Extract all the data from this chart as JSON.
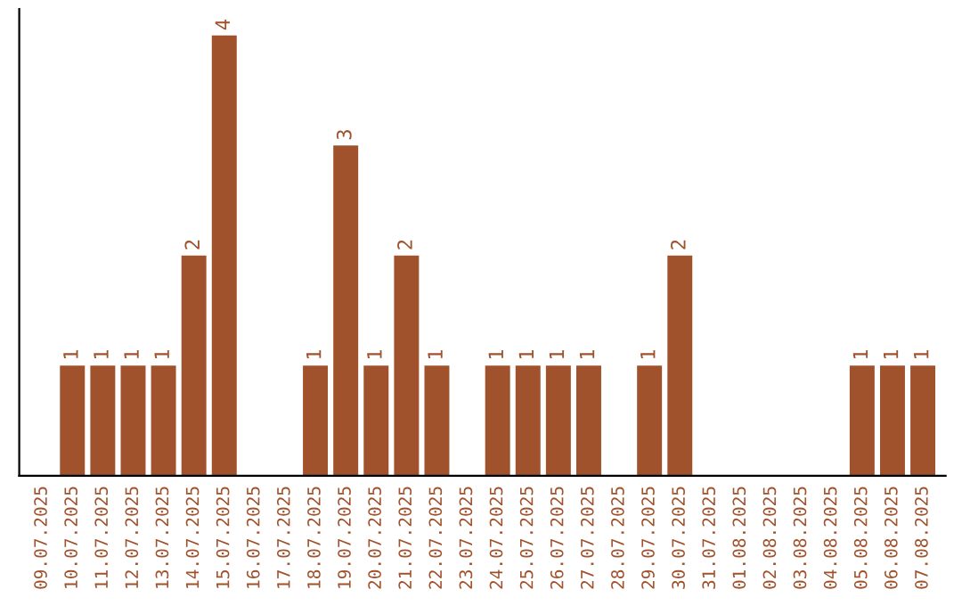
{
  "chart_data": {
    "type": "bar",
    "categories": [
      "09.07.2025",
      "10.07.2025",
      "11.07.2025",
      "12.07.2025",
      "13.07.2025",
      "14.07.2025",
      "15.07.2025",
      "16.07.2025",
      "17.07.2025",
      "18.07.2025",
      "19.07.2025",
      "20.07.2025",
      "21.07.2025",
      "22.07.2025",
      "23.07.2025",
      "24.07.2025",
      "25.07.2025",
      "26.07.2025",
      "27.07.2025",
      "28.07.2025",
      "29.07.2025",
      "30.07.2025",
      "31.07.2025",
      "01.08.2025",
      "02.08.2025",
      "03.08.2025",
      "04.08.2025",
      "05.08.2025",
      "06.08.2025",
      "07.08.2025"
    ],
    "values": [
      0,
      1,
      1,
      1,
      1,
      2,
      4,
      0,
      0,
      1,
      3,
      1,
      2,
      1,
      0,
      1,
      1,
      1,
      1,
      0,
      1,
      2,
      0,
      0,
      0,
      0,
      0,
      1,
      1,
      1
    ],
    "value_labels": [
      null,
      "1",
      "1",
      "1",
      "1",
      "2",
      "4",
      null,
      null,
      "1",
      "3",
      "1",
      "2",
      "1",
      null,
      "1",
      "1",
      "1",
      "1",
      null,
      "1",
      "2",
      null,
      null,
      null,
      null,
      null,
      "1",
      "1",
      "1"
    ],
    "color": "#a0522d",
    "grid": false,
    "legend": false
  }
}
